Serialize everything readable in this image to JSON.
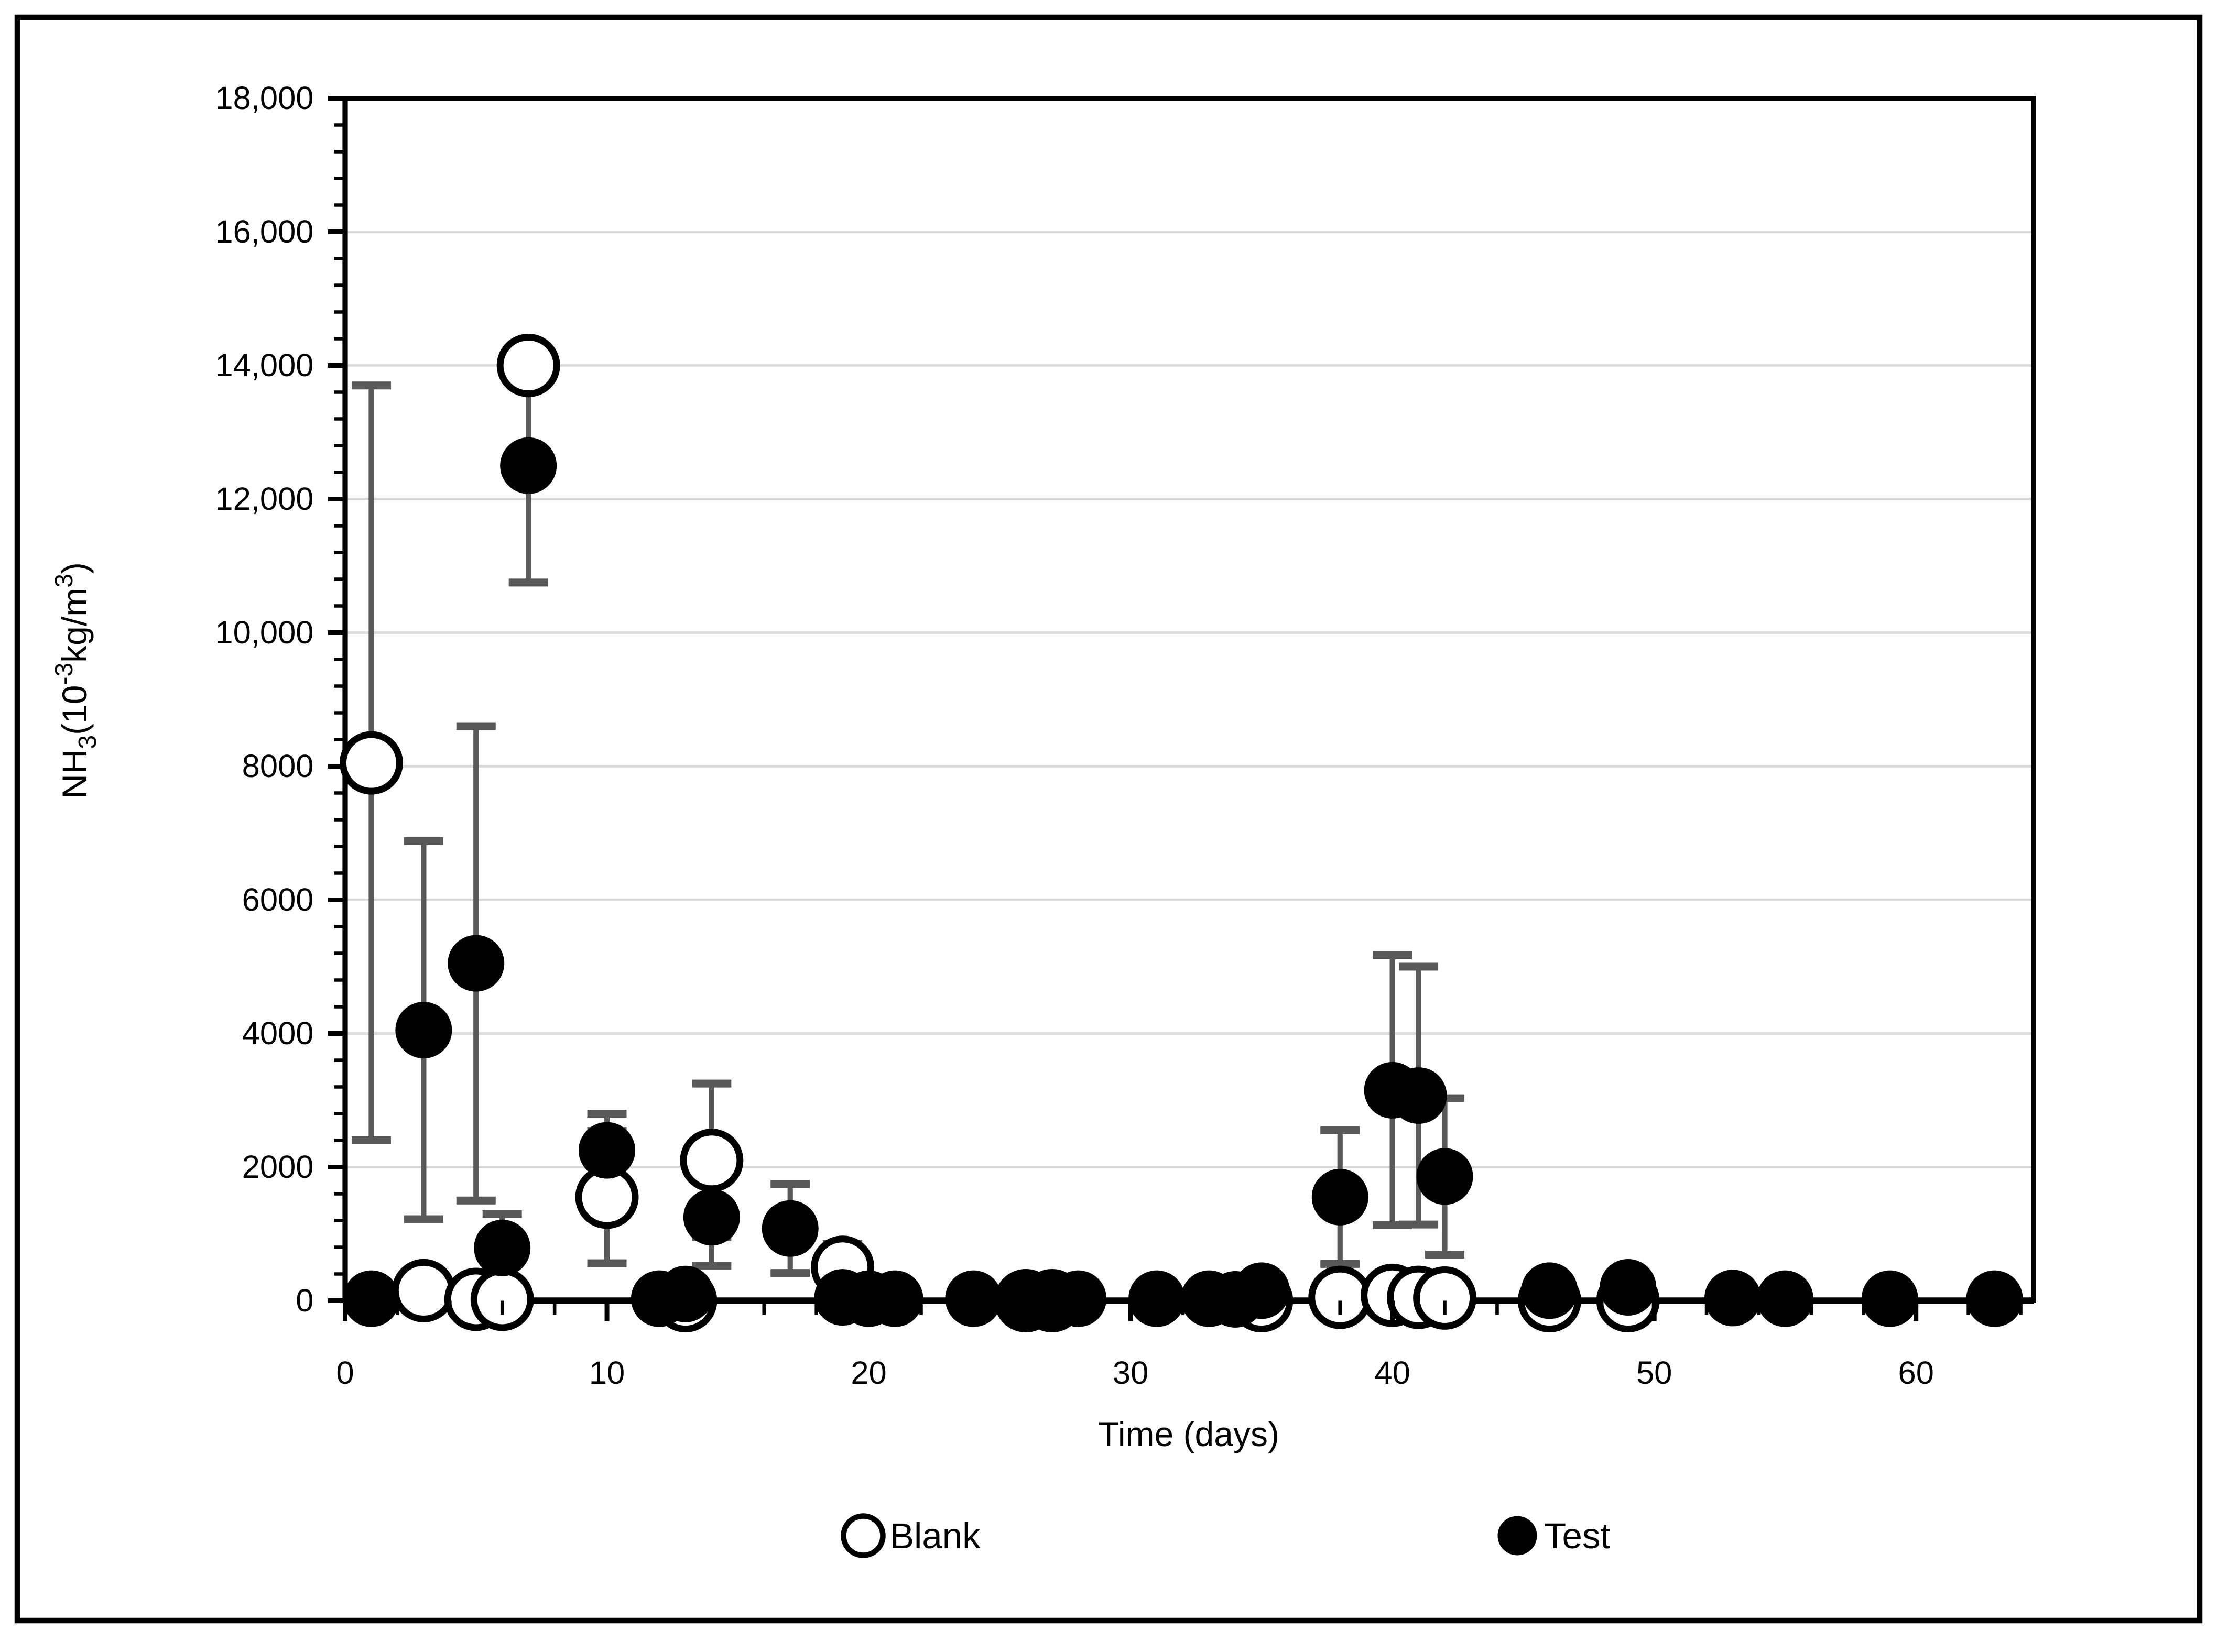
{
  "chart_data": {
    "type": "scatter",
    "title": "",
    "xlabel": "Time (days)",
    "ylabel": "NH3(10-3kg/m3)",
    "ylabel_parts": [
      {
        "t": "NH",
        "style": "normal"
      },
      {
        "t": "3",
        "style": "sub"
      },
      {
        "t": "(10",
        "style": "normal"
      },
      {
        "t": "-3",
        "style": "sup"
      },
      {
        "t": "kg/m",
        "style": "normal"
      },
      {
        "t": "3",
        "style": "sup"
      },
      {
        "t": ")",
        "style": "normal"
      }
    ],
    "x_axis": {
      "min": 0,
      "max": 64.5,
      "major_ticks": [
        0,
        10,
        20,
        30,
        40,
        50,
        60
      ],
      "minor_step": 2
    },
    "y_axis": {
      "min": 0,
      "max": 18000,
      "major_step": 2000,
      "minor_step": 400,
      "tick_labels": [
        {
          "value": 0,
          "label": "0"
        },
        {
          "value": 2000,
          "label": "2000"
        },
        {
          "value": 4000,
          "label": "4000"
        },
        {
          "value": 6000,
          "label": "6000"
        },
        {
          "value": 8000,
          "label": "8000"
        },
        {
          "value": 10000,
          "label": "10,000"
        },
        {
          "value": 12000,
          "label": "12,000"
        },
        {
          "value": 14000,
          "label": "14,000"
        },
        {
          "value": 16000,
          "label": "16,000"
        },
        {
          "value": 18000,
          "label": "18,000"
        }
      ]
    },
    "grid": {
      "horizontal_major": true,
      "vertical": false,
      "color": "#d9d9d9"
    },
    "colors": {
      "marker": "#000000",
      "error_bar": "#595959",
      "frame": "#000000",
      "grid": "#d9d9d9"
    },
    "legend": {
      "position": "bottom"
    },
    "series": [
      {
        "name": "Blank",
        "marker": "open-circle",
        "points": [
          {
            "x": 1,
            "y": 8050,
            "e": 5650
          },
          {
            "x": 3,
            "y": 150
          },
          {
            "x": 5,
            "y": 20
          },
          {
            "x": 6,
            "y": 20
          },
          {
            "x": 7,
            "y": 14000,
            "e": 200
          },
          {
            "x": 10,
            "y": 1550,
            "e": 990
          },
          {
            "x": 13,
            "y": 0
          },
          {
            "x": 14,
            "y": 2100,
            "e": 1150
          },
          {
            "x": 19,
            "y": 500,
            "e": 350
          },
          {
            "x": 26,
            "y": 0
          },
          {
            "x": 27,
            "y": 0
          },
          {
            "x": 35,
            "y": 0
          },
          {
            "x": 38,
            "y": 50
          },
          {
            "x": 40,
            "y": 80
          },
          {
            "x": 41,
            "y": 50
          },
          {
            "x": 42,
            "y": 40
          },
          {
            "x": 46,
            "y": 0
          },
          {
            "x": 49,
            "y": 0
          }
        ]
      },
      {
        "name": "Test",
        "marker": "filled-circle",
        "points": [
          {
            "x": 1,
            "y": 30
          },
          {
            "x": 3,
            "y": 4050,
            "e": 2830
          },
          {
            "x": 5,
            "y": 5050,
            "e": 3550
          },
          {
            "x": 6,
            "y": 790,
            "e": 505
          },
          {
            "x": 7,
            "y": 12500,
            "e": 1750
          },
          {
            "x": 10,
            "y": 2250,
            "e": 550
          },
          {
            "x": 12,
            "y": 30
          },
          {
            "x": 13,
            "y": 100
          },
          {
            "x": 14,
            "y": 1250,
            "e": 730
          },
          {
            "x": 17,
            "y": 1080,
            "e": 665
          },
          {
            "x": 19,
            "y": 50
          },
          {
            "x": 20,
            "y": 30
          },
          {
            "x": 21,
            "y": 30
          },
          {
            "x": 24,
            "y": 30
          },
          {
            "x": 26,
            "y": 40
          },
          {
            "x": 27,
            "y": 40
          },
          {
            "x": 28,
            "y": 30
          },
          {
            "x": 31,
            "y": 30
          },
          {
            "x": 33,
            "y": 30
          },
          {
            "x": 34,
            "y": 20
          },
          {
            "x": 35,
            "y": 150
          },
          {
            "x": 38,
            "y": 1550,
            "e": 1000
          },
          {
            "x": 40,
            "y": 3150,
            "e": 2020
          },
          {
            "x": 41,
            "y": 3070,
            "e": 1930
          },
          {
            "x": 42,
            "y": 1860,
            "e": 1170
          },
          {
            "x": 46,
            "y": 150
          },
          {
            "x": 49,
            "y": 200
          },
          {
            "x": 53,
            "y": 40
          },
          {
            "x": 55,
            "y": 30
          },
          {
            "x": 59,
            "y": 30
          },
          {
            "x": 63,
            "y": 30
          }
        ]
      }
    ]
  }
}
